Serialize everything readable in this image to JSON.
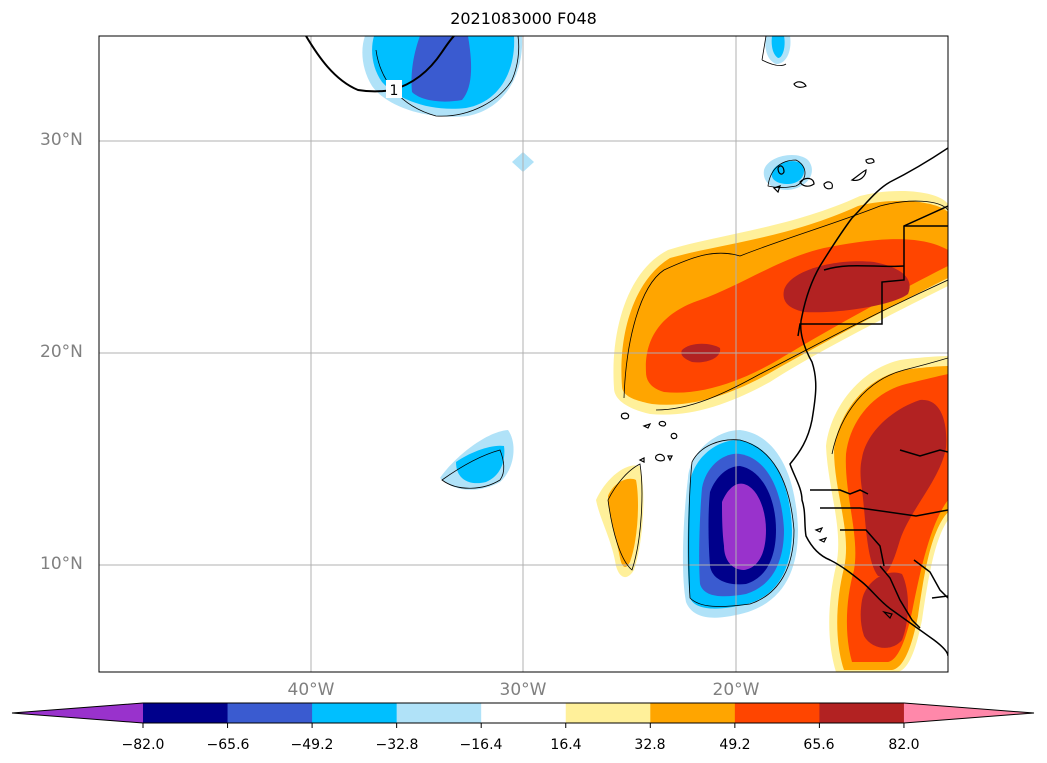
{
  "title": "2021083000 F048",
  "map": {
    "lat_labels": [
      "30°N",
      "20°N",
      "10°N"
    ],
    "lon_labels": [
      "40°W",
      "30°W",
      "20°W"
    ],
    "contour_label": "1"
  },
  "colorbar": {
    "tick_labels": [
      "−82.0",
      "−65.6",
      "−49.2",
      "−32.8",
      "−16.4",
      "16.4",
      "32.8",
      "49.2",
      "65.6",
      "82.0"
    ],
    "colors": [
      "#9932cc",
      "#00008b",
      "#3a5bd0",
      "#00bfff",
      "#b0e2f8",
      "#ffffff",
      "#fff09a",
      "#ffa500",
      "#ff4500",
      "#b22222",
      "#ff88aa"
    ]
  }
}
